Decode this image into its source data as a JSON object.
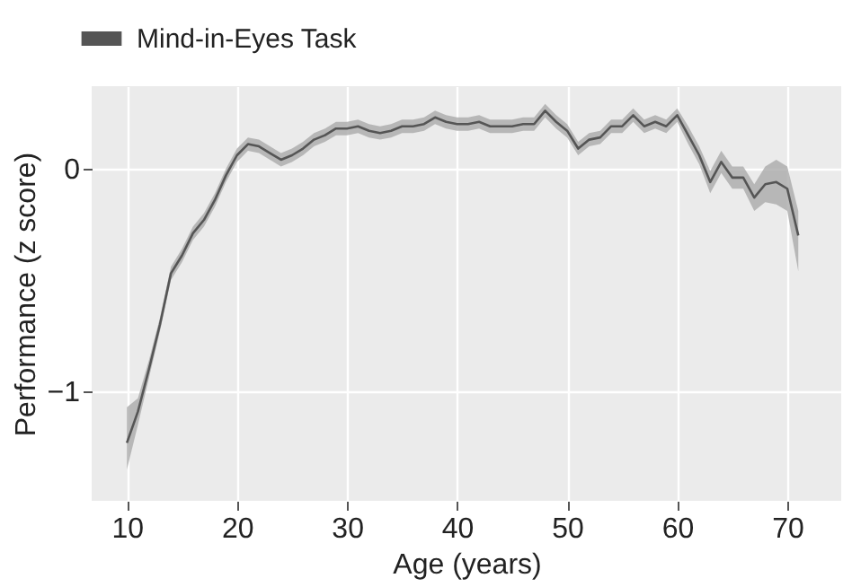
{
  "chart_data": {
    "type": "line",
    "xlabel": "Age (years)",
    "ylabel": "Performance (z score)",
    "x": [
      10,
      11,
      12,
      13,
      14,
      15,
      16,
      17,
      18,
      19,
      20,
      21,
      22,
      23,
      24,
      25,
      26,
      27,
      28,
      29,
      30,
      31,
      32,
      33,
      34,
      35,
      36,
      37,
      38,
      39,
      40,
      41,
      42,
      43,
      44,
      45,
      46,
      47,
      48,
      49,
      50,
      51,
      52,
      53,
      54,
      55,
      56,
      57,
      58,
      59,
      60,
      61,
      62,
      63,
      64,
      65,
      66,
      67,
      68,
      69,
      70,
      71
    ],
    "series": [
      {
        "name": "Mind-in-Eyes Task",
        "color": "#555555",
        "values": [
          -1.23,
          -1.09,
          -0.9,
          -0.7,
          -0.47,
          -0.39,
          -0.29,
          -0.23,
          -0.14,
          -0.03,
          0.06,
          0.11,
          0.1,
          0.07,
          0.04,
          0.06,
          0.09,
          0.13,
          0.15,
          0.18,
          0.18,
          0.19,
          0.17,
          0.16,
          0.17,
          0.19,
          0.19,
          0.2,
          0.23,
          0.21,
          0.2,
          0.2,
          0.21,
          0.19,
          0.19,
          0.19,
          0.2,
          0.2,
          0.26,
          0.21,
          0.17,
          0.09,
          0.13,
          0.14,
          0.19,
          0.19,
          0.24,
          0.19,
          0.21,
          0.19,
          0.24,
          0.15,
          0.06,
          -0.06,
          0.03,
          -0.04,
          -0.04,
          -0.13,
          -0.07,
          -0.06,
          -0.09,
          -0.3
        ],
        "lower": [
          -1.35,
          -1.15,
          -0.94,
          -0.73,
          -0.5,
          -0.42,
          -0.32,
          -0.26,
          -0.17,
          -0.06,
          0.03,
          0.08,
          0.07,
          0.04,
          0.01,
          0.03,
          0.06,
          0.1,
          0.12,
          0.15,
          0.15,
          0.16,
          0.14,
          0.13,
          0.14,
          0.16,
          0.16,
          0.17,
          0.2,
          0.18,
          0.17,
          0.17,
          0.18,
          0.16,
          0.16,
          0.16,
          0.17,
          0.17,
          0.23,
          0.18,
          0.14,
          0.06,
          0.1,
          0.11,
          0.16,
          0.16,
          0.21,
          0.16,
          0.18,
          0.16,
          0.21,
          0.11,
          0.02,
          -0.11,
          -0.02,
          -0.09,
          -0.09,
          -0.19,
          -0.15,
          -0.16,
          -0.19,
          -0.46
        ],
        "upper": [
          -1.07,
          -1.03,
          -0.86,
          -0.67,
          -0.44,
          -0.36,
          -0.26,
          -0.2,
          -0.11,
          0.0,
          0.09,
          0.14,
          0.13,
          0.1,
          0.07,
          0.09,
          0.12,
          0.16,
          0.18,
          0.21,
          0.21,
          0.22,
          0.2,
          0.19,
          0.2,
          0.22,
          0.22,
          0.23,
          0.26,
          0.24,
          0.23,
          0.23,
          0.24,
          0.22,
          0.22,
          0.22,
          0.23,
          0.23,
          0.29,
          0.24,
          0.2,
          0.12,
          0.16,
          0.17,
          0.22,
          0.22,
          0.27,
          0.22,
          0.24,
          0.22,
          0.27,
          0.19,
          0.1,
          -0.01,
          0.08,
          0.01,
          0.01,
          -0.07,
          0.01,
          0.04,
          0.01,
          -0.19
        ]
      }
    ],
    "xlim": [
      6.8,
      74.9
    ],
    "ylim": [
      -1.49,
      0.37
    ],
    "xticks": [
      10,
      20,
      30,
      40,
      50,
      60,
      70
    ],
    "yticks": [
      -1,
      0
    ],
    "grid": true,
    "legend": "top left"
  }
}
